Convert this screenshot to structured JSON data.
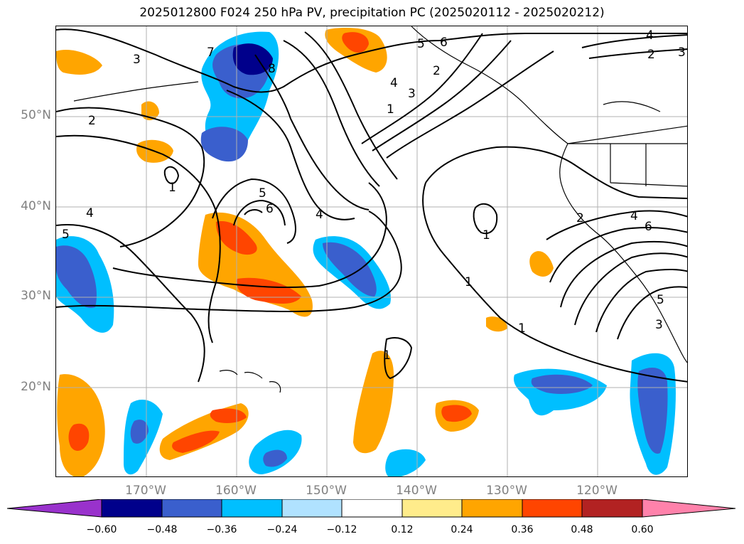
{
  "title": "2025012800 F024 250 hPa PV, precipitation PC (2025020112 - 2025020212)",
  "lat_labels": [
    "50°N",
    "40°N",
    "30°N",
    "20°N"
  ],
  "lon_labels": [
    "170°W",
    "160°W",
    "150°W",
    "140°W",
    "130°W",
    "120°W"
  ],
  "colorbar": {
    "ticks": [
      "−0.60",
      "−0.48",
      "−0.36",
      "−0.24",
      "−0.12",
      "0.12",
      "0.24",
      "0.36",
      "0.48",
      "0.60"
    ],
    "colors": [
      "#9932cc",
      "#00008b",
      "#3a5fcd",
      "#00bfff",
      "#b0e2ff",
      "#ffffff",
      "#ffec8b",
      "#ffa500",
      "#ff4500",
      "#b22222",
      "#ff82ab"
    ]
  },
  "contour_labels": [
    "3",
    "2",
    "1",
    "4",
    "5",
    "6",
    "7",
    "8",
    "1",
    "4",
    "5",
    "6",
    "1",
    "2",
    "4",
    "6",
    "5",
    "3",
    "3",
    "4",
    "5",
    "2",
    "3",
    "2",
    "4",
    "1",
    "1",
    "1"
  ],
  "map": {
    "projection": "cylindrical",
    "lon_range": [
      -180,
      -110
    ],
    "lat_range": [
      10,
      60
    ],
    "fill_variable": "precipitation PC",
    "contour_variable": "250 hPa PV",
    "grid": true
  }
}
